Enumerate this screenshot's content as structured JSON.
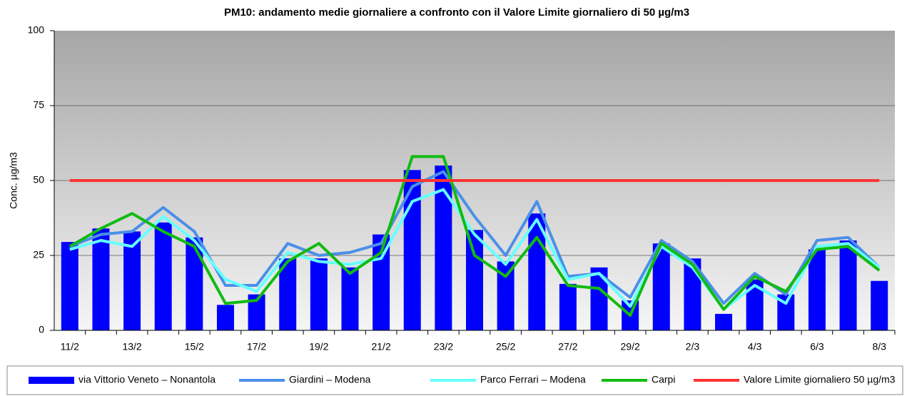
{
  "chart_data": {
    "type": "bar-line",
    "title": "PM10: andamento  medie giornaliere a confronto con il Valore Limite giornaliero di 50 µg/m3",
    "y_label": "Conc. µg/m3",
    "categories": [
      "11/2",
      null,
      "13/2",
      null,
      "15/2",
      null,
      "17/2",
      null,
      "19/2",
      null,
      "21/2",
      null,
      "23/2",
      null,
      "25/2",
      null,
      "27/2",
      null,
      "29/2",
      null,
      "2/3",
      null,
      "4/3",
      null,
      "6/3",
      null,
      "8/3"
    ],
    "ylim": [
      0,
      100
    ],
    "yticks": [
      0,
      25,
      50,
      75,
      100
    ],
    "grid": true,
    "legend": "bottom",
    "series": [
      {
        "name": "via Vittorio Veneto – Nonantola",
        "kind": "bar",
        "color": "#0000ff",
        "values": [
          29.5,
          34,
          33,
          36,
          31,
          8.5,
          12,
          24,
          24,
          21,
          32,
          53.5,
          55,
          33.5,
          23,
          39,
          15.5,
          21,
          10,
          29,
          24,
          5.5,
          17,
          12,
          27,
          30,
          16.5
        ]
      },
      {
        "name": "Giardini – Modena",
        "kind": "line",
        "color": "#4a90e8",
        "values": [
          28,
          32,
          33,
          41,
          33,
          15,
          15,
          29,
          25,
          26,
          29,
          48,
          53,
          38,
          25,
          43,
          18,
          19,
          11,
          30,
          23,
          9,
          19,
          12,
          30,
          31,
          21
        ]
      },
      {
        "name": "Parco Ferrari – Modena",
        "kind": "line",
        "color": "#66ffff",
        "values": [
          27,
          30,
          28,
          38,
          30,
          17,
          13,
          26,
          23,
          22,
          24,
          43,
          47,
          32,
          22,
          37,
          17,
          19,
          8,
          28,
          21,
          7,
          15,
          9,
          28,
          29,
          21
        ]
      },
      {
        "name": "Carpi",
        "kind": "line",
        "color": "#11bb11",
        "values": [
          28,
          34,
          39,
          33,
          28,
          9,
          10,
          23,
          29,
          19,
          26,
          58,
          58,
          25,
          18,
          31,
          15,
          14,
          5,
          29,
          22,
          7,
          18,
          13,
          27,
          28,
          20
        ]
      },
      {
        "name": "Valore Limite giornaliero 50 µg/m3",
        "kind": "line",
        "color": "#ff3333",
        "values": [
          50,
          50,
          50,
          50,
          50,
          50,
          50,
          50,
          50,
          50,
          50,
          50,
          50,
          50,
          50,
          50,
          50,
          50,
          50,
          50,
          50,
          50,
          50,
          50,
          50,
          50,
          50
        ]
      }
    ]
  }
}
